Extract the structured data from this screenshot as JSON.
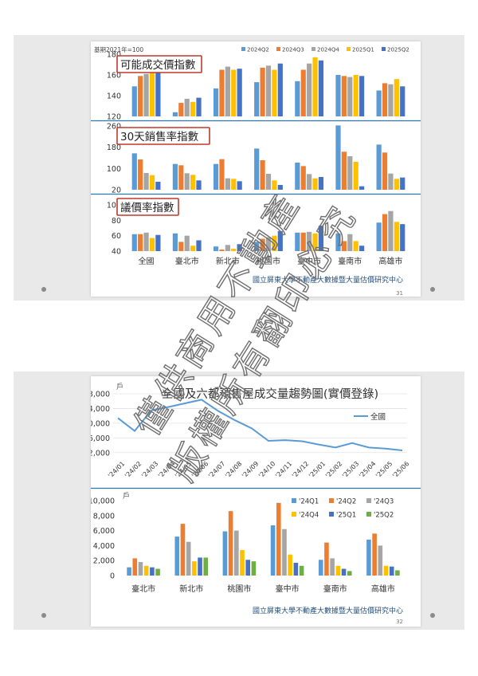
{
  "slide1": {
    "base_note": "基期2021年=100",
    "legend": [
      "2024Q2",
      "2024Q3",
      "2024Q4",
      "2025Q1",
      "2025Q2"
    ],
    "colors": [
      "#5b9bd5",
      "#ed7d31",
      "#a5a5a5",
      "#ffc000",
      "#4472c4"
    ],
    "footer": "國立屏東大學不動產大數據暨大量估價研究中心",
    "page": "31"
  },
  "slide2": {
    "footer": "國立屏東大學不動產大數據暨大量估價研究中心",
    "page": "32"
  },
  "watermark": {
    "lines": [
      "僅供商用不動產",
      "版權所有翻印必究"
    ]
  },
  "chart_data": [
    {
      "type": "bar",
      "title": "可能成交價指數",
      "categories": [
        "全國",
        "臺北市",
        "新北市",
        "桃園市",
        "臺中市",
        "臺南市",
        "高雄市"
      ],
      "ylim": [
        120,
        180
      ],
      "yticks": [
        120,
        140,
        160,
        180
      ],
      "series": [
        {
          "name": "2024Q2",
          "values": [
            149,
            124,
            147,
            153,
            154,
            160,
            145
          ]
        },
        {
          "name": "2024Q3",
          "values": [
            159,
            133,
            165,
            167,
            165,
            159,
            152
          ]
        },
        {
          "name": "2024Q4",
          "values": [
            161,
            137,
            168,
            169,
            171,
            158,
            151
          ]
        },
        {
          "name": "2025Q1",
          "values": [
            162,
            134,
            165,
            165,
            177,
            160,
            156
          ]
        },
        {
          "name": "2025Q2",
          "values": [
            162,
            138,
            166,
            171,
            174,
            159,
            149
          ]
        }
      ]
    },
    {
      "type": "bar",
      "title": "30天銷售率指數",
      "categories": [
        "全國",
        "臺北市",
        "新北市",
        "桃園市",
        "臺中市",
        "臺南市",
        "高雄市"
      ],
      "ylim": [
        20,
        260
      ],
      "yticks": [
        20,
        100,
        180,
        260
      ],
      "series": [
        {
          "name": "2024Q2",
          "values": [
            157,
            117,
            117,
            175,
            122,
            262,
            190
          ]
        },
        {
          "name": "2024Q3",
          "values": [
            134,
            112,
            135,
            131,
            109,
            163,
            160
          ]
        },
        {
          "name": "2024Q4",
          "values": [
            83,
            82,
            63,
            80,
            79,
            146,
            81
          ]
        },
        {
          "name": "2025Q1",
          "values": [
            75,
            76,
            61,
            55,
            63,
            125,
            61
          ]
        },
        {
          "name": "2025Q2",
          "values": [
            50,
            55,
            52,
            38,
            68,
            33,
            66
          ]
        }
      ]
    },
    {
      "type": "bar",
      "title": "議價率指數",
      "categories": [
        "全國",
        "臺北市",
        "新北市",
        "桃園市",
        "臺中市",
        "臺南市",
        "高雄市"
      ],
      "ylim": [
        40,
        100
      ],
      "yticks": [
        40,
        60,
        80,
        100
      ],
      "series": [
        {
          "name": "2024Q2",
          "values": [
            62,
            63,
            46,
            52,
            64,
            63,
            77
          ]
        },
        {
          "name": "2024Q3",
          "values": [
            62,
            52,
            42,
            56,
            64,
            53,
            88
          ]
        },
        {
          "name": "2024Q4",
          "values": [
            64,
            60,
            48,
            58,
            65,
            62,
            92
          ]
        },
        {
          "name": "2025Q1",
          "values": [
            57,
            47,
            43,
            60,
            63,
            53,
            78
          ]
        },
        {
          "name": "2025Q2",
          "values": [
            61,
            54,
            49,
            66,
            73,
            47,
            75
          ]
        }
      ]
    },
    {
      "type": "line",
      "title": "全國及六都預售屋成交量趨勢圖(實價登錄)",
      "y_unit": "戶",
      "x": [
        "'24/01",
        "'24/02",
        "'24/03",
        "'24/04",
        "'24/05",
        "'24/06",
        "'24/07",
        "'24/08",
        "'24/09",
        "'24/10",
        "'24/11",
        "'24/12",
        "'25/01",
        "'25/02",
        "'25/03",
        "'25/04",
        "'25/05",
        "'25/06"
      ],
      "ylim": [
        0,
        18000
      ],
      "yticks": [
        2000,
        6000,
        10000,
        14000,
        18000
      ],
      "ytick_labels": [
        "2,000",
        "6,000",
        "10,000",
        "14,000",
        "18,000"
      ],
      "series": [
        {
          "name": "全國",
          "values": [
            11400,
            7900,
            13500,
            14400,
            15400,
            16400,
            13300,
            10800,
            8600,
            5200,
            5400,
            5100,
            4200,
            3400,
            4600,
            3400,
            3100,
            2600
          ]
        }
      ]
    },
    {
      "type": "bar",
      "y_unit": "戶",
      "categories": [
        "臺北市",
        "新北市",
        "桃園市",
        "臺中市",
        "臺南市",
        "高雄市"
      ],
      "ylim": [
        0,
        10000
      ],
      "yticks": [
        0,
        2000,
        4000,
        6000,
        8000,
        10000
      ],
      "ytick_labels": [
        "0",
        "2,000",
        "4,000",
        "6,000",
        "8,000",
        "10,000"
      ],
      "series": [
        {
          "name": "'24Q1",
          "values": [
            1100,
            5200,
            5900,
            6700,
            2100,
            4800
          ]
        },
        {
          "name": "'24Q2",
          "values": [
            2300,
            6900,
            8600,
            9700,
            4400,
            5600
          ]
        },
        {
          "name": "'24Q3",
          "values": [
            1800,
            4500,
            6000,
            6200,
            2300,
            4000
          ]
        },
        {
          "name": "'24Q4",
          "values": [
            1300,
            1900,
            3400,
            2800,
            1300,
            1300
          ]
        },
        {
          "name": "'25Q1",
          "values": [
            1100,
            2400,
            2100,
            1700,
            900,
            1200
          ]
        },
        {
          "name": "'25Q2",
          "values": [
            900,
            2400,
            1900,
            1300,
            600,
            700
          ]
        }
      ]
    }
  ]
}
